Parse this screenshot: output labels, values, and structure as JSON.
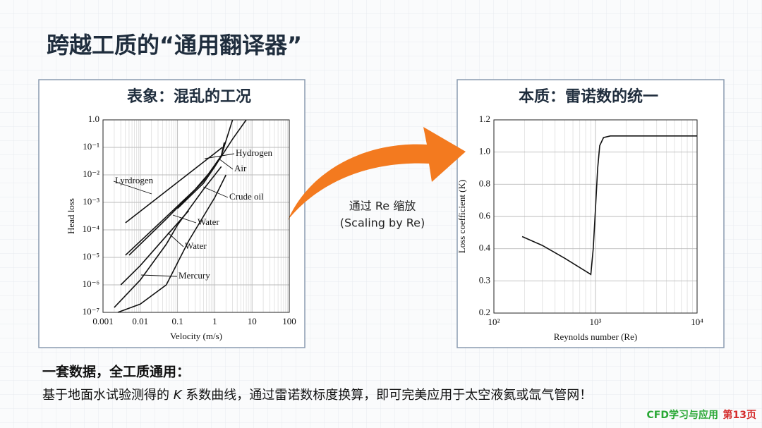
{
  "title": "跨越工质的“通用翻译器”",
  "arrow_label": [
    "通过 Re 缩放",
    "(Scaling by Re)"
  ],
  "summary": {
    "heading": "一套数据，全工质通用：",
    "body": [
      "基于地面水试验测得的 ",
      "K",
      " 系数曲线，通过雷诺数标度换算，即可完美应用于太空液氦或氙气管网！"
    ]
  },
  "footer": {
    "source": "CFD学习与应用",
    "page": "第13页"
  },
  "chart_data": [
    {
      "type": "line",
      "title": "表象：混乱的工况",
      "x_label": "Velocity (m/s)",
      "y_label": "Head loss",
      "log_x": true,
      "log_y": true,
      "grid": true,
      "xlim": [
        0.001,
        100
      ],
      "ylim": [
        1e-07,
        1
      ],
      "xticks": [
        0.001,
        0.01,
        0.1,
        1,
        10,
        100
      ],
      "yticks": [
        {
          "value": 1e-07,
          "label": "10⁻⁷"
        },
        {
          "value": 1e-06,
          "label": "10⁻⁶"
        },
        {
          "value": 1e-05,
          "label": "10⁻⁵"
        },
        {
          "value": 0.0001,
          "label": "10⁻⁴"
        },
        {
          "value": 0.001,
          "label": "10⁻³"
        },
        {
          "value": 0.01,
          "label": "10⁻²"
        },
        {
          "value": 0.1,
          "label": "10⁻¹"
        },
        {
          "value": 1,
          "label": "1.0"
        }
      ],
      "series": [
        {
          "name": "Hydrogen",
          "color": "#111111",
          "x": [
            0.005,
            0.05,
            0.5,
            1.5,
            3
          ],
          "values": [
            1.2e-05,
            0.00025,
            0.006,
            0.05,
            1
          ]
        },
        {
          "name": "Air",
          "color": "#111111",
          "x": [
            0.1,
            0.5,
            1,
            1.5,
            1.8
          ],
          "values": [
            0.0006,
            0.005,
            0.02,
            0.05,
            0.15
          ]
        },
        {
          "name": "Crude oil",
          "color": "#111111",
          "x": [
            0.004,
            0.05,
            0.3,
            1,
            3,
            7
          ],
          "values": [
            1.2e-05,
            0.0003,
            0.003,
            0.02,
            0.2,
            1
          ]
        },
        {
          "name": "Water",
          "color": "#111111",
          "x": [
            0.002,
            0.01,
            0.05,
            0.1,
            0.5,
            1.5
          ],
          "values": [
            1.5e-07,
            1.5e-06,
            3e-05,
            0.00015,
            0.003,
            0.02
          ]
        },
        {
          "name": "Water",
          "color": "#111111",
          "x": [
            0.0025,
            0.01,
            0.05,
            0.2,
            1,
            2
          ],
          "values": [
            1e-07,
            2e-07,
            1e-06,
            4e-05,
            0.0015,
            0.01
          ]
        },
        {
          "name": "Mercury",
          "color": "#111111",
          "x": [
            0.003,
            0.01,
            0.05,
            0.2
          ],
          "values": [
            1e-06,
            5e-06,
            6e-05,
            0.0005
          ]
        },
        {
          "name": "Lyrdrogen",
          "color": "#111111",
          "x": [
            0.004,
            1.6
          ],
          "values": [
            0.00018,
            0.1
          ]
        }
      ]
    },
    {
      "type": "line",
      "title": "本质：雷诺数的统一",
      "x_label": "Reynolds number (Re)",
      "y_label": "Loss coefficient (K)",
      "log_x": true,
      "log_y": false,
      "grid": true,
      "xlim": [
        100,
        10000
      ],
      "ylim": [
        0.2,
        1.2
      ],
      "xticks": [
        {
          "value": 100,
          "label": "10²"
        },
        {
          "value": 1000,
          "label": "10³"
        },
        {
          "value": 10000,
          "label": "10⁴"
        }
      ],
      "yticks": [
        0.2,
        0.3,
        0.4,
        0.6,
        0.8,
        {
          "value": 1,
          "label": "1.0"
        },
        1.2
      ],
      "series": [
        {
          "color": "#111111",
          "x": [
            190,
            300,
            500,
            800,
            900,
            950,
            1000,
            1050,
            1100,
            1200,
            1400,
            10000
          ],
          "values": [
            0.475,
            0.42,
            0.37,
            0.33,
            0.32,
            0.4,
            0.65,
            0.9,
            1.04,
            1.09,
            1.1,
            1.1
          ]
        }
      ]
    }
  ]
}
